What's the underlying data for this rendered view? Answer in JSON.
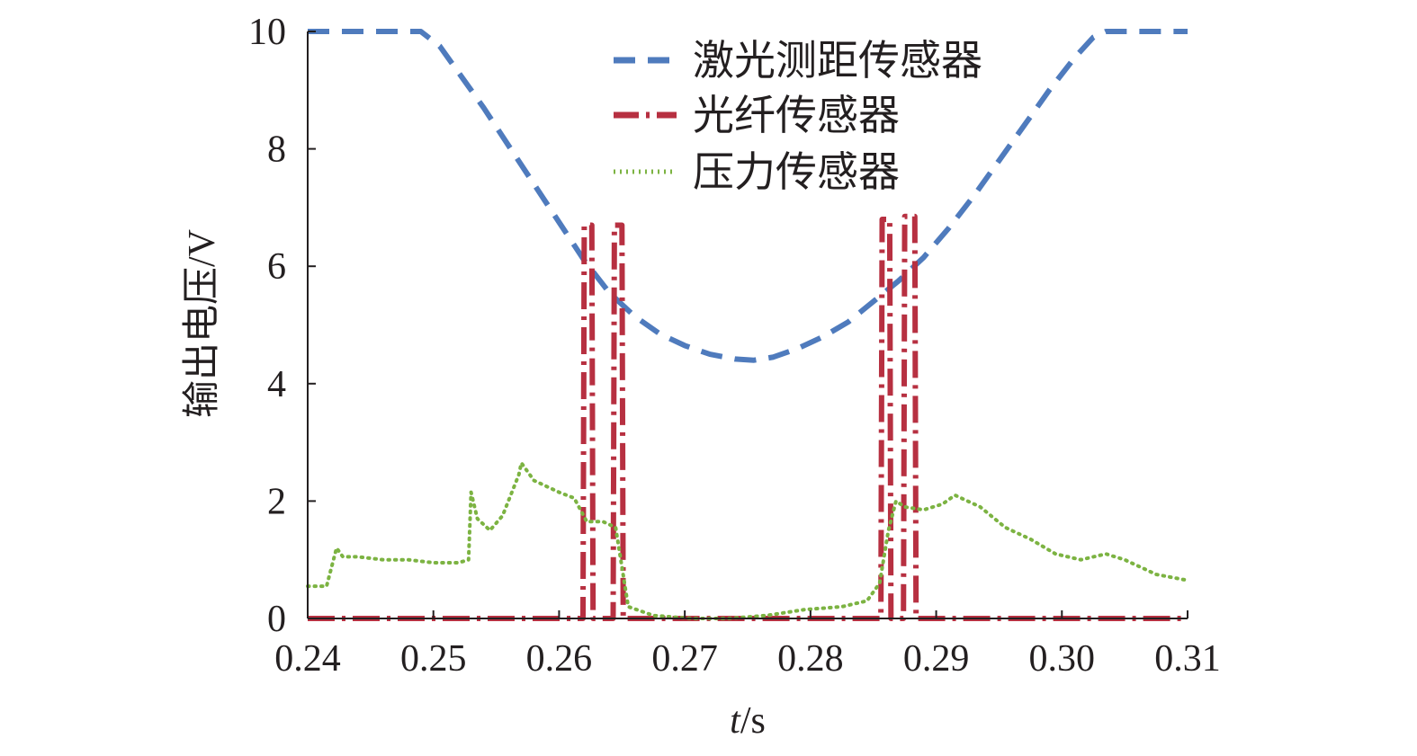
{
  "chart_data": {
    "type": "line",
    "title": "",
    "xlabel": {
      "var": "t",
      "unit": "/s"
    },
    "ylabel": "输出电压/V",
    "xlim": [
      0.24,
      0.31
    ],
    "ylim": [
      0,
      10
    ],
    "xticks": [
      "0.24",
      "0.25",
      "0.26",
      "0.27",
      "0.28",
      "0.29",
      "0.30",
      "0.31"
    ],
    "yticks": [
      "0",
      "2",
      "4",
      "6",
      "8",
      "10"
    ],
    "grid": false,
    "legend_position": "top-right",
    "series": [
      {
        "name": "激光测距传感器",
        "color": "#4f7bbd",
        "style": "dashed",
        "x": [
          0.24,
          0.249,
          0.2505,
          0.252,
          0.254,
          0.256,
          0.258,
          0.26,
          0.262,
          0.264,
          0.266,
          0.268,
          0.27,
          0.272,
          0.274,
          0.2755,
          0.277,
          0.279,
          0.281,
          0.283,
          0.285,
          0.287,
          0.289,
          0.291,
          0.293,
          0.295,
          0.297,
          0.299,
          0.301,
          0.3025,
          0.3035,
          0.305,
          0.31
        ],
        "values": [
          10,
          10,
          9.75,
          9.3,
          8.7,
          8.05,
          7.4,
          6.75,
          6.1,
          5.55,
          5.15,
          4.85,
          4.65,
          4.5,
          4.42,
          4.4,
          4.45,
          4.6,
          4.8,
          5.05,
          5.4,
          5.75,
          6.15,
          6.65,
          7.2,
          7.8,
          8.4,
          9.0,
          9.55,
          9.9,
          10,
          10,
          10
        ]
      },
      {
        "name": "光纤传感器",
        "color": "#b73041",
        "style": "dashdot",
        "x": [
          0.24,
          0.2619,
          0.262,
          0.2626,
          0.2627,
          0.2643,
          0.2644,
          0.265,
          0.2651,
          0.2856,
          0.2857,
          0.2863,
          0.2864,
          0.2874,
          0.2875,
          0.2883,
          0.2884,
          0.31
        ],
        "values": [
          0,
          0,
          6.7,
          6.7,
          0,
          0,
          6.7,
          6.7,
          0,
          0,
          6.8,
          6.8,
          0,
          0,
          6.85,
          6.85,
          0,
          0
        ]
      },
      {
        "name": "压力传感器",
        "color": "#7cb342",
        "style": "dotted",
        "x": [
          0.24,
          0.2415,
          0.2423,
          0.2428,
          0.244,
          0.246,
          0.248,
          0.25,
          0.252,
          0.2528,
          0.253,
          0.2535,
          0.2545,
          0.2555,
          0.2568,
          0.257,
          0.258,
          0.26,
          0.2612,
          0.2622,
          0.2635,
          0.2645,
          0.2655,
          0.2675,
          0.2705,
          0.2735,
          0.2765,
          0.2795,
          0.2825,
          0.2845,
          0.2855,
          0.2862,
          0.2868,
          0.2875,
          0.289,
          0.2905,
          0.2915,
          0.2935,
          0.2955,
          0.2975,
          0.2995,
          0.3015,
          0.3035,
          0.305,
          0.3075,
          0.31
        ],
        "values": [
          0.55,
          0.55,
          1.2,
          1.05,
          1.05,
          1.0,
          1.0,
          0.95,
          0.95,
          1.0,
          2.15,
          1.7,
          1.5,
          1.75,
          2.45,
          2.65,
          2.35,
          2.15,
          2.05,
          1.65,
          1.65,
          1.55,
          0.2,
          0.05,
          0.0,
          0.0,
          0.05,
          0.15,
          0.2,
          0.3,
          0.6,
          1.5,
          2.0,
          1.9,
          1.85,
          1.95,
          2.1,
          1.9,
          1.55,
          1.35,
          1.1,
          1.0,
          1.1,
          1.0,
          0.75,
          0.65
        ]
      }
    ]
  }
}
